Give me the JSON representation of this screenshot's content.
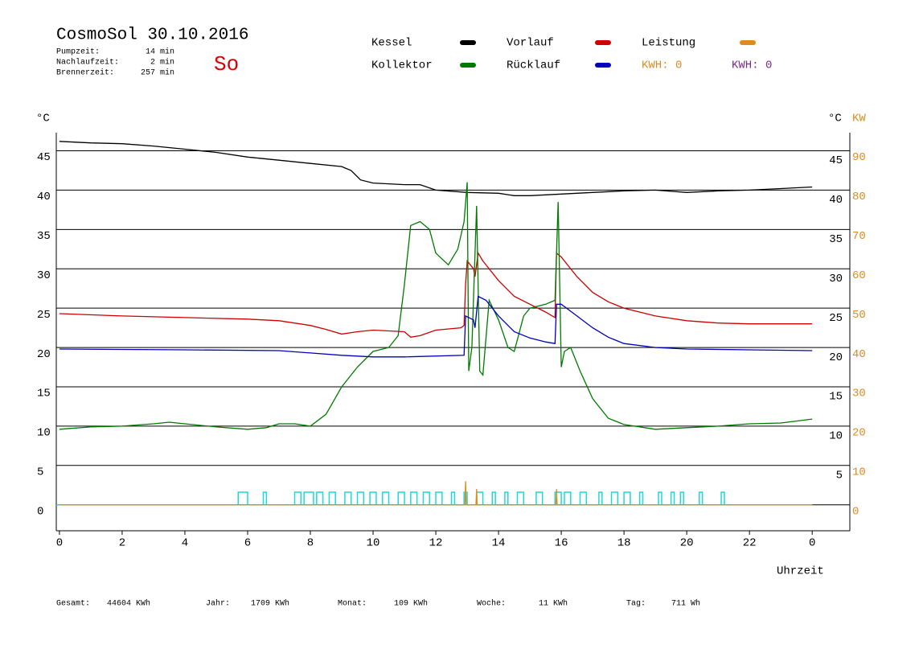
{
  "chart_data": {
    "type": "line",
    "title": "CosmoSol 30.10.2016",
    "day": "So",
    "stats": [
      {
        "label": "Pumpzeit:",
        "value": "14 min"
      },
      {
        "label": "Nachlaufzeit:",
        "value": "2 min"
      },
      {
        "label": "Brennerzeit:",
        "value": "257 min"
      }
    ],
    "kwh_labels": [
      {
        "text": "KWH: 0",
        "color": "#e08a1e"
      },
      {
        "text": "KWH: 0",
        "color": "#7a2a8a"
      }
    ],
    "y_label": "°C",
    "y2_label_c": "°C",
    "y2_label": "KW",
    "x_label": "Uhrzeit",
    "xlim": [
      -0.1,
      25.2
    ],
    "xticks": [
      0,
      2,
      4,
      6,
      8,
      10,
      12,
      14,
      16,
      18,
      20,
      22,
      {
        "value": 24,
        "label": "0"
      }
    ],
    "ylim": [
      -3.3,
      47.3
    ],
    "yticks": [
      0,
      5,
      10,
      15,
      20,
      25,
      30,
      35,
      40,
      45
    ],
    "yticks_right": [
      5,
      10,
      15,
      20,
      25,
      30,
      35,
      40,
      45
    ],
    "y2lim": [
      -6.6,
      94.6
    ],
    "y2ticks": [
      0,
      10,
      20,
      30,
      40,
      50,
      60,
      70,
      80,
      90
    ],
    "grid": true,
    "series": [
      {
        "name": "Kessel",
        "color": "#000000",
        "x": [
          0,
          1,
          2,
          3,
          4,
          5,
          6,
          7,
          8,
          9,
          9.3,
          9.6,
          10,
          11,
          11.5,
          12,
          13,
          14,
          14.5,
          15,
          16,
          17,
          18,
          19,
          20,
          21,
          22,
          23,
          24
        ],
        "values": [
          46.2,
          46.0,
          45.9,
          45.6,
          45.2,
          44.8,
          44.2,
          43.8,
          43.4,
          43.0,
          42.5,
          41.3,
          40.9,
          40.7,
          40.7,
          40.0,
          39.7,
          39.6,
          39.3,
          39.3,
          39.5,
          39.7,
          39.9,
          40.0,
          39.7,
          39.9,
          40.0,
          40.2,
          40.4
        ]
      },
      {
        "name": "Vorlauf",
        "color": "#cc0000",
        "x": [
          0,
          2,
          4,
          6,
          7,
          8,
          8.5,
          9,
          9.5,
          10,
          11,
          11.2,
          11.5,
          12,
          12.8,
          12.9,
          12.95,
          13.0,
          13.2,
          13.25,
          13.35,
          13.5,
          14,
          14.5,
          15,
          15.5,
          15.8,
          15.85,
          16,
          16.5,
          17,
          17.5,
          18,
          19,
          20,
          21,
          22,
          24
        ],
        "values": [
          24.3,
          24.0,
          23.8,
          23.6,
          23.4,
          22.8,
          22.3,
          21.7,
          22.0,
          22.2,
          22.0,
          21.3,
          21.5,
          22.2,
          22.5,
          22.8,
          28.0,
          31.0,
          30.0,
          29.0,
          32.0,
          31.0,
          28.5,
          26.5,
          25.5,
          24.5,
          23.8,
          32.0,
          31.5,
          29.0,
          27.0,
          25.8,
          25.0,
          24.0,
          23.4,
          23.1,
          23.0,
          23.0
        ]
      },
      {
        "name": "Leistung",
        "color": "#e08a1e",
        "axis": "y2",
        "x": [
          0,
          12.93,
          12.95,
          12.97,
          13.28,
          13.3,
          13.32,
          15.83,
          15.85,
          15.87,
          24
        ],
        "values": [
          0,
          0,
          6,
          0,
          0,
          4,
          0,
          0,
          4,
          0,
          0
        ]
      },
      {
        "name": "Kollektor",
        "color": "#007a00",
        "x": [
          0,
          1,
          2,
          3,
          3.5,
          4,
          5,
          6,
          6.6,
          7,
          7.5,
          8,
          8.5,
          9,
          9.5,
          10,
          10.5,
          10.8,
          11,
          11.2,
          11.5,
          11.8,
          12,
          12.4,
          12.7,
          12.9,
          13.0,
          13.05,
          13.15,
          13.3,
          13.4,
          13.5,
          13.7,
          14,
          14.3,
          14.5,
          14.8,
          15,
          15.5,
          15.8,
          15.9,
          16.0,
          16.1,
          16.3,
          16.6,
          17,
          17.5,
          18,
          19,
          20,
          21,
          22,
          23,
          24
        ],
        "values": [
          9.6,
          9.9,
          10.0,
          10.3,
          10.5,
          10.3,
          9.9,
          9.6,
          9.8,
          10.3,
          10.3,
          10.0,
          11.5,
          15.0,
          17.5,
          19.5,
          20.0,
          21.5,
          28.0,
          35.5,
          36.0,
          35.0,
          32.0,
          30.5,
          32.5,
          36.0,
          41.0,
          17.0,
          20.0,
          38.0,
          17.0,
          16.5,
          26.0,
          23.5,
          20.0,
          19.5,
          24.0,
          25.0,
          25.5,
          26.0,
          38.5,
          17.5,
          19.5,
          20.0,
          17.0,
          13.5,
          11.0,
          10.2,
          9.6,
          9.8,
          10.0,
          10.3,
          10.4,
          10.9
        ]
      },
      {
        "name": "Rücklauf",
        "color": "#0000bb",
        "x": [
          0,
          4,
          7,
          8,
          9,
          10,
          11,
          12.9,
          12.95,
          13.2,
          13.25,
          13.35,
          13.6,
          14,
          14.5,
          15,
          15.5,
          15.8,
          15.85,
          16,
          16.5,
          17,
          17.5,
          18,
          19,
          20,
          22,
          24
        ],
        "values": [
          19.8,
          19.7,
          19.6,
          19.3,
          19.0,
          18.8,
          18.8,
          19.0,
          24.0,
          23.5,
          22.5,
          26.5,
          26.0,
          24.0,
          22.0,
          21.2,
          20.7,
          20.5,
          25.5,
          25.5,
          24.0,
          22.5,
          21.3,
          20.5,
          20.0,
          19.8,
          19.7,
          19.6
        ]
      }
    ],
    "pump_color": "#20d8d8",
    "pump_level": 1.6,
    "pulses": [
      [
        5.7,
        6.0
      ],
      [
        6.5,
        6.6
      ],
      [
        7.5,
        7.7
      ],
      [
        7.8,
        8.1
      ],
      [
        8.2,
        8.4
      ],
      [
        8.6,
        8.8
      ],
      [
        9.1,
        9.3
      ],
      [
        9.5,
        9.7
      ],
      [
        9.9,
        10.1
      ],
      [
        10.3,
        10.5
      ],
      [
        10.8,
        11.0
      ],
      [
        11.2,
        11.4
      ],
      [
        11.6,
        11.8
      ],
      [
        12.0,
        12.2
      ],
      [
        12.5,
        12.6
      ],
      [
        12.9,
        13.0
      ],
      [
        13.3,
        13.5
      ],
      [
        13.8,
        13.9
      ],
      [
        14.2,
        14.3
      ],
      [
        14.6,
        14.8
      ],
      [
        15.2,
        15.4
      ],
      [
        15.8,
        16.0
      ],
      [
        16.1,
        16.3
      ],
      [
        16.6,
        16.8
      ],
      [
        17.2,
        17.3
      ],
      [
        17.6,
        17.8
      ],
      [
        18.0,
        18.2
      ],
      [
        18.5,
        18.6
      ],
      [
        19.1,
        19.2
      ],
      [
        19.5,
        19.6
      ],
      [
        19.8,
        19.9
      ],
      [
        20.4,
        20.5
      ],
      [
        21.1,
        21.2
      ]
    ],
    "totals": [
      {
        "label": "Gesamt:",
        "value": "44604 KWh"
      },
      {
        "label": "Jahr:",
        "value": "1709 KWh"
      },
      {
        "label": "Monat:",
        "value": "109 KWh"
      },
      {
        "label": "Woche:",
        "value": "11 KWh"
      },
      {
        "label": "Tag:",
        "value": "711 Wh"
      }
    ]
  }
}
